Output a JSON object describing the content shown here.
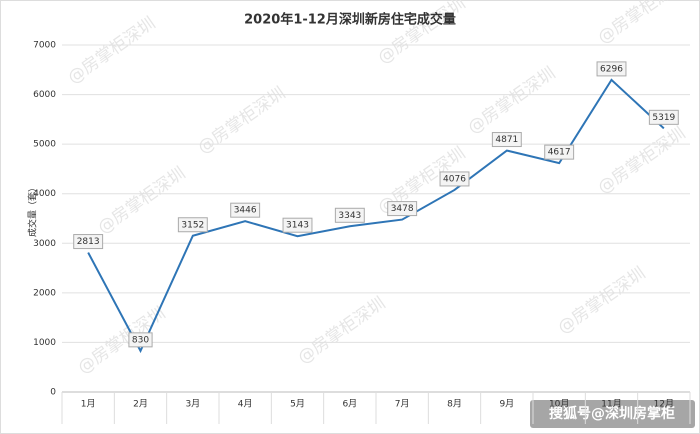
{
  "chart_data": {
    "type": "line",
    "title": "2020年1-12月深圳新房住宅成交量",
    "y_label": "成交量（套）",
    "categories": [
      "1月",
      "2月",
      "3月",
      "4月",
      "5月",
      "6月",
      "7月",
      "8月",
      "9月",
      "10月",
      "11月",
      "12月"
    ],
    "series": [
      {
        "name": "成交量",
        "color": "#2e75b6",
        "values": [
          2813,
          830,
          3152,
          3446,
          3143,
          3343,
          3478,
          4076,
          4871,
          4617,
          6296,
          5319
        ]
      }
    ],
    "ylim": [
      0,
      7000
    ],
    "yticks": [
      0,
      1000,
      2000,
      3000,
      4000,
      5000,
      6000,
      7000
    ],
    "grid": true,
    "watermark": "@房掌柜深圳",
    "source": "搜狐号@深圳房掌柜"
  }
}
